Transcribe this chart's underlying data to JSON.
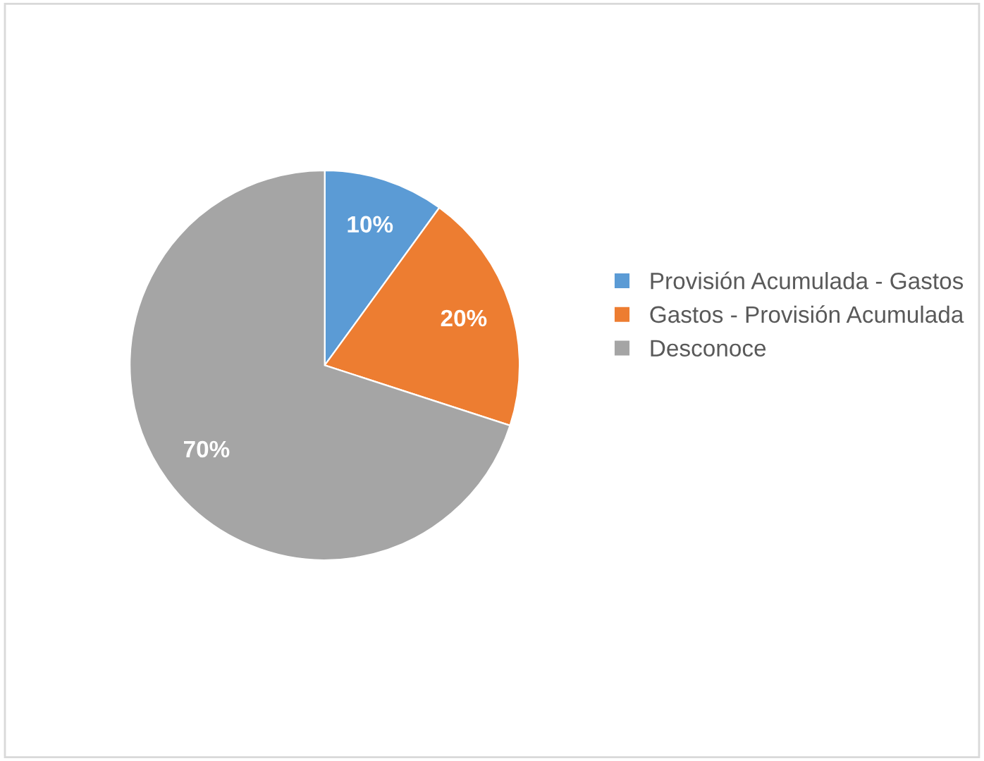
{
  "chart_data": {
    "type": "pie",
    "categories": [
      "Provisión Acumulada - Gastos",
      "Gastos - Provisión Acumulada",
      "Desconoce"
    ],
    "values": [
      10,
      20,
      70
    ],
    "colors": [
      "#5b9bd5",
      "#ed7d31",
      "#a5a5a5"
    ],
    "value_labels": [
      "10%",
      "20%",
      "70%"
    ],
    "legend": "right"
  }
}
